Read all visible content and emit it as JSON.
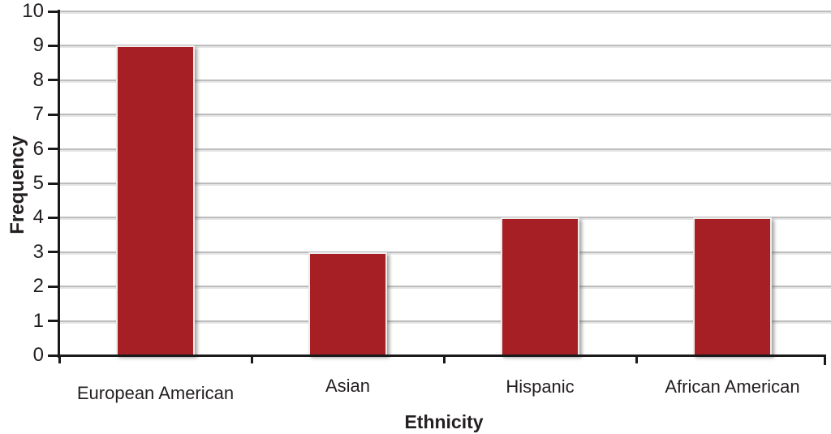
{
  "chart_data": {
    "type": "bar",
    "categories": [
      "European American",
      "Asian",
      "Hispanic",
      "African American"
    ],
    "values": [
      9,
      3,
      4,
      4
    ],
    "title": "",
    "xlabel": "Ethnicity",
    "ylabel": "Frequency",
    "ylim": [
      0,
      10
    ],
    "yticks": [
      0,
      1,
      2,
      3,
      4,
      5,
      6,
      7,
      8,
      9,
      10
    ],
    "grid": true,
    "legend": "none",
    "bar_color": "#A61F24",
    "gridline_color": "#bdbdbd",
    "axis_color": "#1a1a1a"
  }
}
